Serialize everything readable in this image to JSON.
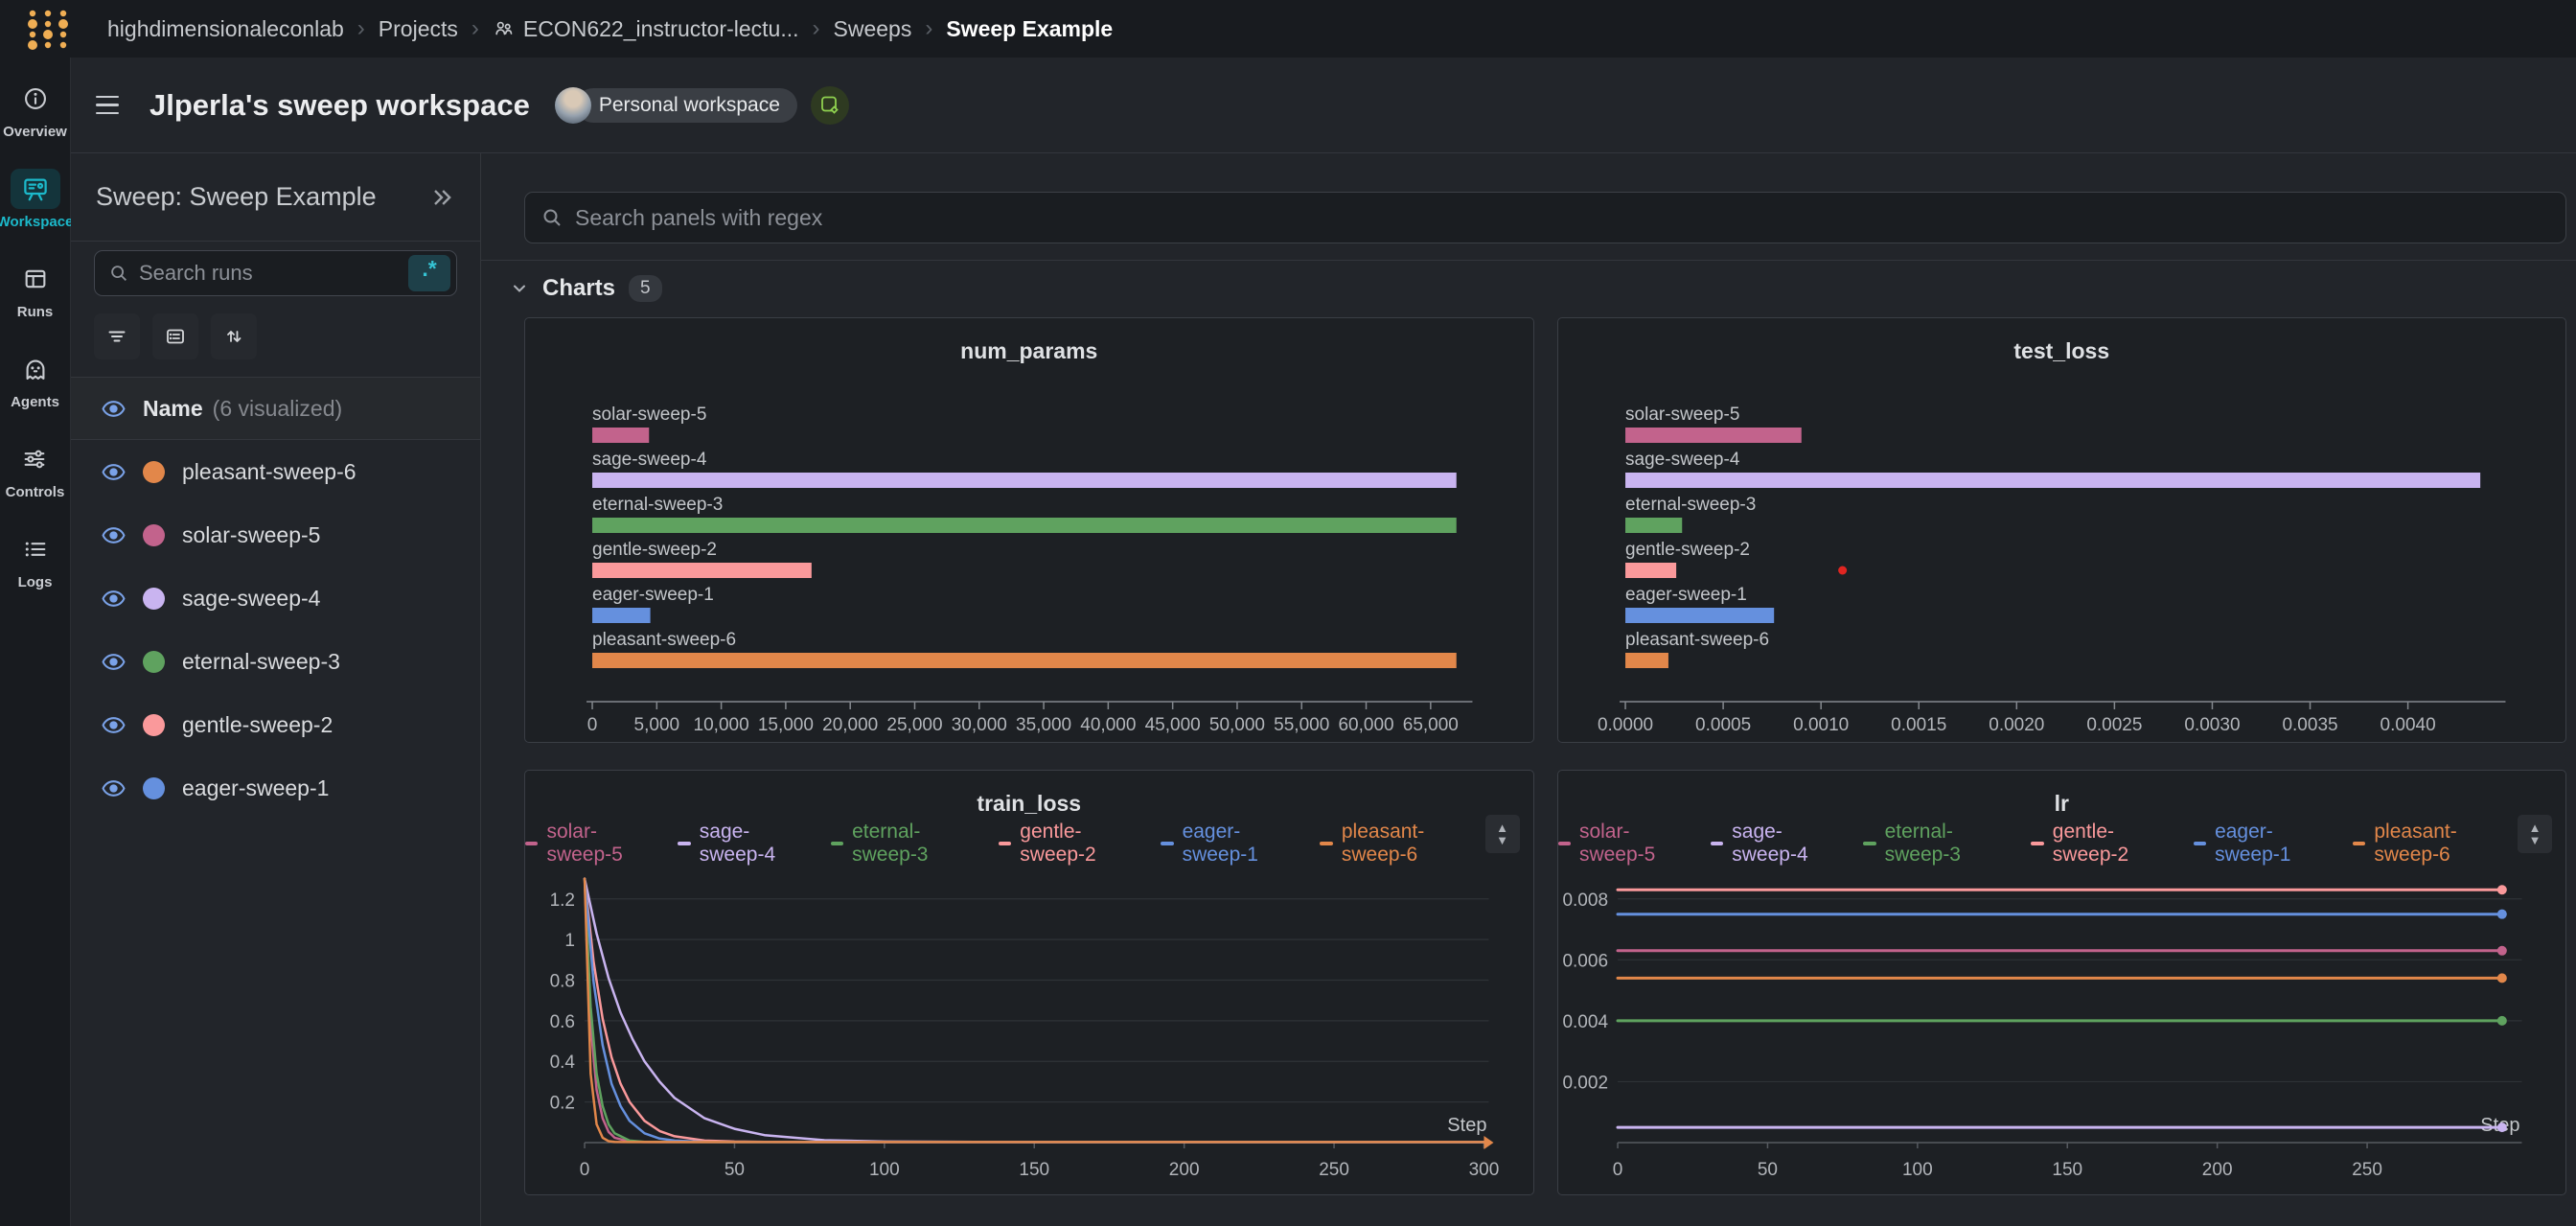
{
  "topbar": {
    "breadcrumbs": [
      {
        "label": "highdimensionaleconlab"
      },
      {
        "label": "Projects"
      },
      {
        "label": "ECON622_instructor-lectu...",
        "icon": "team"
      },
      {
        "label": "Sweeps"
      },
      {
        "label": "Sweep Example",
        "current": true
      }
    ]
  },
  "rail": {
    "items": [
      {
        "label": "Overview",
        "icon": "info-circle",
        "active": false
      },
      {
        "label": "Workspace",
        "icon": "workspace-board",
        "active": true
      },
      {
        "label": "Runs",
        "icon": "table",
        "active": false
      },
      {
        "label": "Agents",
        "icon": "ghost",
        "active": false
      },
      {
        "label": "Controls",
        "icon": "sliders",
        "active": false
      },
      {
        "label": "Logs",
        "icon": "list",
        "active": false
      }
    ]
  },
  "header": {
    "title": "Jlperla's sweep workspace",
    "badge": "Personal workspace"
  },
  "sweep_panel": {
    "title": "Sweep: Sweep Example",
    "search_placeholder": "Search runs",
    "regex_label": ".*",
    "toolbar": [
      "filter",
      "group",
      "sort"
    ],
    "columns_header": {
      "label": "Name",
      "suffix": "(6 visualized)"
    },
    "eye_color": "#7AA2E8",
    "runs": [
      {
        "name": "pleasant-sweep-6",
        "color": "#E2874A"
      },
      {
        "name": "solar-sweep-5",
        "color": "#C2638C"
      },
      {
        "name": "sage-sweep-4",
        "color": "#C9B4F0"
      },
      {
        "name": "eternal-sweep-3",
        "color": "#5FA25F"
      },
      {
        "name": "gentle-sweep-2",
        "color": "#FA999B"
      },
      {
        "name": "eager-sweep-1",
        "color": "#6590DE"
      }
    ]
  },
  "main": {
    "search_placeholder": "Search panels with regex",
    "section_label": "Charts",
    "section_count": "5"
  },
  "chart_data": [
    {
      "type": "bar",
      "title": "num_params",
      "categories": [
        "solar-sweep-5",
        "sage-sweep-4",
        "eternal-sweep-3",
        "gentle-sweep-2",
        "eager-sweep-1",
        "pleasant-sweep-6"
      ],
      "values": [
        4400,
        67000,
        67000,
        17000,
        4500,
        67000
      ],
      "colors": [
        "#C2638C",
        "#C9B4F0",
        "#5FA25F",
        "#FA999B",
        "#6590DE",
        "#E2874A"
      ],
      "xticks": [
        0,
        5000,
        10000,
        15000,
        20000,
        25000,
        30000,
        35000,
        40000,
        45000,
        50000,
        55000,
        60000,
        65000
      ],
      "xmax": 67500,
      "tick_format": "thousands",
      "xlabel": "",
      "ylabel": ""
    },
    {
      "type": "bar",
      "title": "test_loss",
      "categories": [
        "solar-sweep-5",
        "sage-sweep-4",
        "eternal-sweep-3",
        "gentle-sweep-2",
        "eager-sweep-1",
        "pleasant-sweep-6"
      ],
      "values": [
        0.0009,
        0.00437,
        0.00029,
        0.00026,
        0.00076,
        0.00022
      ],
      "colors": [
        "#C2638C",
        "#C9B4F0",
        "#5FA25F",
        "#FA999B",
        "#6590DE",
        "#E2874A"
      ],
      "xticks": [
        0,
        0.0005,
        0.001,
        0.0015,
        0.002,
        0.0025,
        0.003,
        0.0035,
        0.004
      ],
      "xmax": 0.00445,
      "tick_format": "fixed4",
      "annotation": {
        "type": "point",
        "x": 0.00111,
        "row_index": 3,
        "color": "#E02521"
      },
      "xlabel": "",
      "ylabel": ""
    },
    {
      "type": "line",
      "title": "train_loss",
      "xlabel": "Step",
      "xticks": [
        0,
        50,
        100,
        150,
        200,
        250,
        300
      ],
      "xmax": 300,
      "yticks": [
        0.2,
        0.4,
        0.6,
        0.8,
        1,
        1.2
      ],
      "ylim": [
        0,
        1.35
      ],
      "ytick_format": "plain",
      "end_marker": "arrow",
      "grid": true,
      "legend_position": "top",
      "series": [
        {
          "name": "solar-sweep-5",
          "color": "#C2638C",
          "points": [
            [
              0,
              1.3
            ],
            [
              2,
              0.58
            ],
            [
              4,
              0.26
            ],
            [
              6,
              0.12
            ],
            [
              8,
              0.053
            ],
            [
              10,
              0.024
            ],
            [
              15,
              0.005
            ],
            [
              20,
              0.003
            ],
            [
              30,
              0.003
            ],
            [
              50,
              0.003
            ],
            [
              100,
              0.003
            ],
            [
              200,
              0.003
            ],
            [
              300,
              0.003
            ]
          ]
        },
        {
          "name": "sage-sweep-4",
          "color": "#C9B4F0",
          "points": [
            [
              0,
              1.3
            ],
            [
              4,
              1.03
            ],
            [
              8,
              0.81
            ],
            [
              12,
              0.64
            ],
            [
              16,
              0.51
            ],
            [
              20,
              0.4
            ],
            [
              25,
              0.3
            ],
            [
              30,
              0.22
            ],
            [
              40,
              0.12
            ],
            [
              50,
              0.068
            ],
            [
              60,
              0.037
            ],
            [
              80,
              0.012
            ],
            [
              100,
              0.005
            ],
            [
              150,
              0.003
            ],
            [
              200,
              0.003
            ],
            [
              300,
              0.003
            ]
          ]
        },
        {
          "name": "eternal-sweep-3",
          "color": "#5FA25F",
          "points": [
            [
              0,
              1.3
            ],
            [
              2,
              0.67
            ],
            [
              4,
              0.34
            ],
            [
              6,
              0.18
            ],
            [
              8,
              0.09
            ],
            [
              10,
              0.046
            ],
            [
              15,
              0.01
            ],
            [
              20,
              0.004
            ],
            [
              30,
              0.003
            ],
            [
              50,
              0.003
            ],
            [
              100,
              0.003
            ],
            [
              300,
              0.003
            ]
          ]
        },
        {
          "name": "gentle-sweep-2",
          "color": "#FA999B",
          "points": [
            [
              0,
              1.3
            ],
            [
              3,
              0.89
            ],
            [
              6,
              0.61
            ],
            [
              9,
              0.42
            ],
            [
              12,
              0.29
            ],
            [
              15,
              0.2
            ],
            [
              20,
              0.107
            ],
            [
              25,
              0.057
            ],
            [
              30,
              0.031
            ],
            [
              40,
              0.01
            ],
            [
              50,
              0.005
            ],
            [
              60,
              0.004
            ],
            [
              100,
              0.003
            ],
            [
              300,
              0.003
            ]
          ]
        },
        {
          "name": "eager-sweep-1",
          "color": "#6590DE",
          "points": [
            [
              0,
              1.3
            ],
            [
              3,
              0.79
            ],
            [
              6,
              0.48
            ],
            [
              9,
              0.29
            ],
            [
              12,
              0.18
            ],
            [
              15,
              0.107
            ],
            [
              20,
              0.046
            ],
            [
              25,
              0.02
            ],
            [
              30,
              0.01
            ],
            [
              40,
              0.004
            ],
            [
              50,
              0.003
            ],
            [
              100,
              0.003
            ],
            [
              300,
              0.003
            ]
          ]
        },
        {
          "name": "pleasant-sweep-6",
          "color": "#E2874A",
          "points": [
            [
              0,
              1.3
            ],
            [
              2,
              0.34
            ],
            [
              4,
              0.09
            ],
            [
              6,
              0.024
            ],
            [
              8,
              0.007
            ],
            [
              10,
              0.004
            ],
            [
              15,
              0.003
            ],
            [
              30,
              0.003
            ],
            [
              100,
              0.003
            ],
            [
              300,
              0.003
            ]
          ]
        }
      ]
    },
    {
      "type": "line",
      "title": "lr",
      "xlabel": "Step",
      "xticks": [
        0,
        50,
        100,
        150,
        200,
        250
      ],
      "xmax": 300,
      "yticks": [
        0.002,
        0.004,
        0.006,
        0.008
      ],
      "ylim": [
        0,
        0.009
      ],
      "ytick_format": "fixed3",
      "end_marker": "dot",
      "grid": true,
      "legend_position": "top",
      "series": [
        {
          "name": "solar-sweep-5",
          "color": "#C2638C",
          "points": [
            [
              0,
              0.0063
            ],
            [
              295,
              0.0063
            ]
          ]
        },
        {
          "name": "sage-sweep-4",
          "color": "#C9B4F0",
          "points": [
            [
              0,
              0.0005
            ],
            [
              295,
              0.0005
            ]
          ]
        },
        {
          "name": "eternal-sweep-3",
          "color": "#5FA25F",
          "points": [
            [
              0,
              0.004
            ],
            [
              295,
              0.004
            ]
          ]
        },
        {
          "name": "gentle-sweep-2",
          "color": "#FA999B",
          "points": [
            [
              0,
              0.0083
            ],
            [
              295,
              0.0083
            ]
          ]
        },
        {
          "name": "eager-sweep-1",
          "color": "#6590DE",
          "points": [
            [
              0,
              0.0075
            ],
            [
              295,
              0.0075
            ]
          ]
        },
        {
          "name": "pleasant-sweep-6",
          "color": "#E2874A",
          "points": [
            [
              0,
              0.0054
            ],
            [
              295,
              0.0054
            ]
          ]
        }
      ]
    }
  ]
}
